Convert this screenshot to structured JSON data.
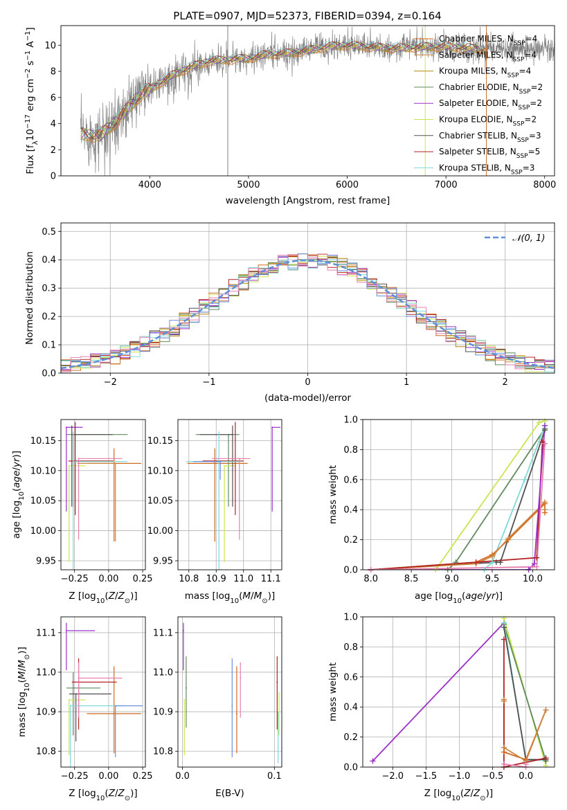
{
  "figure_title": "PLATE=0907, MJD=52373, FIBERID=0394, z=0.164",
  "series": [
    {
      "name": "Chabrier MILES, N$_{SSP}$=4",
      "label_base": "Chabrier MILES, N",
      "label_sub": "SSP",
      "label_tail": "=4",
      "color": "#d2691e"
    },
    {
      "name": "Salpeter MILES, N$_{SSP}$=4",
      "label_base": "Salpeter MILES, N",
      "label_sub": "SSP",
      "label_tail": "=4",
      "color": "#cd853f"
    },
    {
      "name": "Kroupa MILES, N$_{SSP}$=4",
      "label_base": "Kroupa MILES, N",
      "label_sub": "SSP",
      "label_tail": "=4",
      "color": "#b8860b"
    },
    {
      "name": "Chabrier ELODIE, N$_{SSP}$=2",
      "label_base": "Chabrier ELODIE, N",
      "label_sub": "SSP",
      "label_tail": "=2",
      "color": "#5f8a5f"
    },
    {
      "name": "Salpeter ELODIE, N$_{SSP}$=2",
      "label_base": "Salpeter ELODIE, N",
      "label_sub": "SSP",
      "label_tail": "=2",
      "color": "#9b30c8"
    },
    {
      "name": "Kroupa ELODIE, N$_{SSP}$=2",
      "label_base": "Kroupa ELODIE, N",
      "label_sub": "SSP",
      "label_tail": "=2",
      "color": "#c8e650"
    },
    {
      "name": "Chabrier STELIB, N$_{SSP}$=3",
      "label_base": "Chabrier STELIB, N",
      "label_sub": "SSP",
      "label_tail": "=3",
      "color": "#505050"
    },
    {
      "name": "Salpeter STELIB, N$_{SSP}$=5",
      "label_base": "Salpeter STELIB, N",
      "label_sub": "SSP",
      "label_tail": "=5",
      "color": "#b22222"
    },
    {
      "name": "Kroupa STELIB, N$_{SSP}$=3",
      "label_base": "Kroupa STELIB, N",
      "label_sub": "SSP",
      "label_tail": "=3",
      "color": "#7fd8d8"
    }
  ],
  "extra_colors": {
    "data_spectrum": "#808080",
    "gaussian": "#5b8fd8",
    "pink": "#e67fb0",
    "blue": "#6a8ee0"
  },
  "chart_data": [
    {
      "id": "spectrum",
      "type": "line",
      "xlabel": "wavelength [Angstrom, rest frame]",
      "ylabel": "Flux [f$_\\lambda$10$^{-17}$ erg cm$^{-2}$ s$^{-1}$ A$^{-1}$]",
      "ylabel_parts": [
        "Flux [f",
        "λ",
        "10",
        "−17",
        " erg cm",
        "−2",
        " s",
        "−1",
        " A",
        "−1",
        "]"
      ],
      "xlim": [
        3100,
        8100
      ],
      "ylim": [
        0,
        11.5
      ],
      "xticks": [
        4000,
        5000,
        6000,
        7000,
        8000
      ],
      "yticks": [
        0,
        2,
        4,
        6,
        8,
        10
      ],
      "grid": false,
      "legend": "top-right",
      "model_continuum": {
        "x": [
          3300,
          3500,
          3700,
          3900,
          4000,
          4200,
          4400,
          4600,
          4800,
          5000,
          5200,
          5400,
          5600,
          5800,
          6000,
          6200,
          6400,
          6600,
          6800,
          7000,
          7200,
          7400
        ],
        "y": [
          3.2,
          3.1,
          4.5,
          6.2,
          6.6,
          7.6,
          8.3,
          8.8,
          8.9,
          9.0,
          9.3,
          9.4,
          9.6,
          9.9,
          10.0,
          9.9,
          9.8,
          9.8,
          9.9,
          9.9,
          9.8,
          9.7
        ]
      },
      "data_range_angstrom": [
        3300,
        8100
      ]
    },
    {
      "id": "residuals",
      "type": "bar",
      "xlabel": "(data-model)/error",
      "ylabel": "Normed distribution",
      "xlim": [
        -2.5,
        2.5
      ],
      "ylim": [
        0,
        0.53
      ],
      "xticks": [
        -2,
        -1,
        0,
        1,
        2
      ],
      "yticks": [
        0.0,
        0.1,
        0.2,
        0.3,
        0.4,
        0.5
      ],
      "grid": true,
      "legend": "top-right",
      "gaussian_label": "𝒩(0, 1)",
      "bin_width": 0.1
    },
    {
      "id": "age_vs_Z",
      "type": "scatter",
      "xlabel": "Z [log$_{10}$(Z/Z$_\\odot$)]",
      "ylabel": "age  [log$_{10}$(age/yr)]",
      "xlim": [
        -0.35,
        0.27
      ],
      "ylim": [
        9.935,
        10.185
      ],
      "xticks": [
        -0.25,
        0.0,
        0.25
      ],
      "yticks": [
        9.95,
        10.0,
        10.05,
        10.1,
        10.15
      ],
      "grid": true,
      "points": [
        {
          "series": 0,
          "x": 0.04,
          "y": 10.112,
          "xerr": [
            0.2,
            0.2
          ],
          "yerr": [
            0.13,
            0.025
          ]
        },
        {
          "series": 1,
          "x": 0.05,
          "y": 10.112,
          "xerr": [
            0.28,
            0.0
          ],
          "yerr": [
            0.13,
            0.0
          ]
        },
        {
          "series": 3,
          "x": -0.26,
          "y": 10.16,
          "xerr": [
            0.05,
            0.4
          ],
          "yerr": [
            0.12,
            0.0
          ]
        },
        {
          "series": 4,
          "x": -0.31,
          "y": 10.172,
          "xerr": [
            0.0,
            0.12
          ],
          "yerr": [
            0.14,
            0.0
          ]
        },
        {
          "series": 5,
          "x": -0.29,
          "y": 10.108,
          "xerr": [
            0.0,
            0.12
          ],
          "yerr": [
            0.16,
            0.0
          ]
        },
        {
          "series": 6,
          "x": -0.27,
          "y": 10.16,
          "xerr": [
            0.0,
            0.3
          ],
          "yerr": [
            0.12,
            0.015
          ]
        },
        {
          "series": 7,
          "x": -0.245,
          "y": 10.116,
          "xerr": [
            0.05,
            0.28
          ],
          "yerr": [
            0.09,
            0.065
          ]
        },
        {
          "series": 8,
          "x": -0.26,
          "y": 10.115,
          "xerr": [
            0.0,
            0.4
          ],
          "yerr": [
            0.19,
            0.05
          ]
        },
        {
          "series": -1,
          "color_key": "pink",
          "x": -0.22,
          "y": 10.12,
          "xerr": [
            0.0,
            0.32
          ],
          "yerr": [
            0.135,
            0.0
          ]
        }
      ]
    },
    {
      "id": "age_vs_mass",
      "type": "scatter",
      "xlabel": "mass [log$_{10}$(M/M$_\\odot$)]",
      "ylabel": "",
      "xlim": [
        10.76,
        11.14
      ],
      "ylim": [
        9.935,
        10.185
      ],
      "xticks": [
        10.8,
        10.9,
        11.0,
        11.1
      ],
      "yticks": [
        9.95,
        10.0,
        10.05,
        10.1,
        10.15
      ],
      "grid": true,
      "points": [
        {
          "series": 0,
          "x": 10.895,
          "y": 10.112,
          "xerr": [
            0.1,
            0.12
          ],
          "yerr": [
            0.13,
            0.025
          ]
        },
        {
          "series": 3,
          "x": 10.945,
          "y": 10.16,
          "xerr": [
            0.12,
            0.04
          ],
          "yerr": [
            0.12,
            0.0
          ]
        },
        {
          "series": 4,
          "x": 11.105,
          "y": 10.172,
          "xerr": [
            0.0,
            0.03
          ],
          "yerr": [
            0.14,
            0.0
          ]
        },
        {
          "series": 5,
          "x": 10.93,
          "y": 10.108,
          "xerr": [
            0.0,
            0.04
          ],
          "yerr": [
            0.16,
            0.0
          ]
        },
        {
          "series": 6,
          "x": 10.96,
          "y": 10.16,
          "xerr": [
            0.12,
            0.0
          ],
          "yerr": [
            0.12,
            0.015
          ]
        },
        {
          "series": 7,
          "x": 10.97,
          "y": 10.116,
          "xerr": [
            0.12,
            0.03
          ],
          "yerr": [
            0.09,
            0.065
          ]
        },
        {
          "series": 8,
          "x": 10.91,
          "y": 10.115,
          "xerr": [
            0.12,
            0.08
          ],
          "yerr": [
            0.19,
            0.05
          ]
        },
        {
          "series": -1,
          "color_key": "pink",
          "x": 10.985,
          "y": 10.12,
          "xerr": [
            0.1,
            0.04
          ],
          "yerr": [
            0.135,
            0.0
          ]
        },
        {
          "series": -1,
          "color_key": "blue",
          "x": 10.915,
          "y": 10.115,
          "xerr": [
            0.1,
            0.0
          ],
          "yerr": [
            0.03,
            0.0
          ]
        }
      ]
    },
    {
      "id": "weight_vs_age",
      "type": "line",
      "xlabel": "age  [log$_{10}$(age/yr)]",
      "ylabel": "mass weight",
      "xlim": [
        7.9,
        10.27
      ],
      "ylim": [
        0,
        1.0
      ],
      "xticks": [
        8.0,
        8.5,
        9.0,
        9.5,
        10.0
      ],
      "yticks": [
        0.0,
        0.2,
        0.4,
        0.6,
        0.8,
        1.0
      ],
      "grid": true,
      "lines": [
        {
          "series": 5,
          "x": [
            8.0,
            8.8,
            10.08,
            10.15
          ],
          "y": [
            0.0,
            0.0,
            0.98,
            0.99
          ]
        },
        {
          "series": 3,
          "x": [
            8.0,
            8.95,
            9.05,
            10.15
          ],
          "y": [
            0.0,
            0.0,
            0.05,
            0.94
          ]
        },
        {
          "series": 6,
          "x": [
            8.0,
            9.55,
            9.6,
            10.15
          ],
          "y": [
            0.0,
            0.05,
            0.05,
            0.93
          ]
        },
        {
          "series": 8,
          "x": [
            8.0,
            9.4,
            9.5,
            9.9,
            10.15
          ],
          "y": [
            0.0,
            0.0,
            0.05,
            0.6,
            0.96
          ]
        },
        {
          "series": 0,
          "x": [
            8.0,
            9.3,
            9.5,
            9.7,
            10.15,
            10.15
          ],
          "y": [
            0.0,
            0.05,
            0.1,
            0.2,
            0.44,
            0.38
          ]
        },
        {
          "series": 1,
          "x": [
            8.0,
            9.3,
            9.5,
            9.7,
            10.15,
            10.15
          ],
          "y": [
            0.0,
            0.04,
            0.09,
            0.21,
            0.45,
            0.4
          ]
        },
        {
          "series": 7,
          "x": [
            8.0,
            9.3,
            10.05,
            10.12,
            10.15
          ],
          "y": [
            0.0,
            0.05,
            0.08,
            0.85,
            0.84
          ]
        },
        {
          "series": 4,
          "x": [
            8.0,
            9.95,
            10.02,
            10.15
          ],
          "y": [
            0.0,
            0.0,
            0.04,
            0.96
          ]
        },
        {
          "series": -1,
          "color_key": "pink",
          "x": [
            8.0,
            10.05,
            10.15
          ],
          "y": [
            0.0,
            0.02,
            0.84
          ]
        }
      ]
    },
    {
      "id": "mass_vs_Z",
      "type": "scatter",
      "xlabel": "Z [log$_{10}$(Z/Z$_\\odot$)]",
      "ylabel": "mass [log$_{10}$(M/M$_\\odot$)]",
      "xlim": [
        -0.35,
        0.27
      ],
      "ylim": [
        10.76,
        11.14
      ],
      "xticks": [
        -0.25,
        0.0,
        0.25
      ],
      "yticks": [
        10.8,
        10.9,
        11.0,
        11.1
      ],
      "grid": true,
      "points": [
        {
          "series": 0,
          "x": 0.04,
          "y": 10.895,
          "xerr": [
            0.2,
            0.2
          ],
          "yerr": [
            0.1,
            0.12
          ]
        },
        {
          "series": 3,
          "x": -0.26,
          "y": 10.96,
          "xerr": [
            0.05,
            0.2
          ],
          "yerr": [
            0.12,
            0.04
          ]
        },
        {
          "series": 4,
          "x": -0.31,
          "y": 11.105,
          "xerr": [
            0.0,
            0.21
          ],
          "yerr": [
            0.1,
            0.02
          ]
        },
        {
          "series": 5,
          "x": -0.29,
          "y": 10.93,
          "xerr": [
            0.0,
            0.12
          ],
          "yerr": [
            0.14,
            0.0
          ]
        },
        {
          "series": 6,
          "x": -0.24,
          "y": 10.945,
          "xerr": [
            0.05,
            0.26
          ],
          "yerr": [
            0.12,
            0.0
          ]
        },
        {
          "series": 7,
          "x": -0.22,
          "y": 10.975,
          "xerr": [
            0.05,
            0.28
          ],
          "yerr": [
            0.12,
            0.06
          ]
        },
        {
          "series": 8,
          "x": -0.28,
          "y": 10.915,
          "xerr": [
            0.0,
            0.4
          ],
          "yerr": [
            0.19,
            0.0
          ]
        },
        {
          "series": -1,
          "color_key": "pink",
          "x": -0.22,
          "y": 10.985,
          "xerr": [
            0.0,
            0.32
          ],
          "yerr": [
            0.1,
            0.04
          ]
        },
        {
          "series": -1,
          "color_key": "blue",
          "x": 0.05,
          "y": 10.915,
          "xerr": [
            0.0,
            0.2
          ],
          "yerr": [
            0.13,
            0.0
          ]
        }
      ]
    },
    {
      "id": "mass_vs_ebv",
      "type": "scatter",
      "xlabel": "E(B-V)",
      "ylabel": "",
      "xlim": [
        -0.005,
        0.108
      ],
      "ylim": [
        10.76,
        11.14
      ],
      "xticks": [
        0.0,
        0.1
      ],
      "yticks": [
        10.8,
        10.9,
        11.0,
        11.1
      ],
      "grid": true,
      "points": [
        {
          "series": 4,
          "x": 0.001,
          "y": 11.105,
          "yerr": [
            0.1,
            0.02
          ]
        },
        {
          "series": 5,
          "x": 0.002,
          "y": 10.93,
          "yerr": [
            0.14,
            0.0
          ]
        },
        {
          "series": 3,
          "x": 0.004,
          "y": 10.96,
          "yerr": [
            0.1,
            0.08
          ]
        },
        {
          "series": -1,
          "color_key": "blue",
          "x": 0.054,
          "y": 10.915,
          "yerr": [
            0.13,
            0.12
          ]
        },
        {
          "series": 0,
          "x": 0.059,
          "y": 10.895,
          "yerr": [
            0.1,
            0.12
          ]
        },
        {
          "series": -1,
          "color_key": "pink",
          "x": 0.063,
          "y": 10.985,
          "yerr": [
            0.1,
            0.04
          ]
        },
        {
          "series": 7,
          "x": 0.103,
          "y": 10.975,
          "yerr": [
            0.12,
            0.065
          ]
        },
        {
          "series": 8,
          "x": 0.104,
          "y": 10.85,
          "yerr": [
            0.08,
            0.05
          ]
        },
        {
          "series": 5,
          "x": 0.105,
          "y": 10.9,
          "yerr": [
            0.06,
            0.05
          ]
        }
      ]
    },
    {
      "id": "weight_vs_Z",
      "type": "line",
      "xlabel": "Z [log$_{10}$(Z/Z$_\\odot$)]",
      "ylabel": "mass weight",
      "xlim": [
        -2.45,
        0.43
      ],
      "ylim": [
        0,
        1.0
      ],
      "xticks": [
        -2.0,
        -1.5,
        -1.0,
        -0.5,
        0.0
      ],
      "yticks": [
        0.0,
        0.2,
        0.4,
        0.6,
        0.8,
        1.0
      ],
      "grid": true,
      "lines": [
        {
          "series": 4,
          "x": [
            -2.3,
            -0.33
          ],
          "y": [
            0.04,
            0.96
          ]
        },
        {
          "series": 5,
          "x": [
            -0.33,
            0.3
          ],
          "y": [
            0.99,
            0.01
          ]
        },
        {
          "series": 3,
          "x": [
            -0.33,
            0.3
          ],
          "y": [
            0.95,
            0.04
          ]
        },
        {
          "series": 8,
          "x": [
            -0.33,
            0.0,
            0.3
          ],
          "y": [
            0.96,
            0.04,
            0.05
          ]
        },
        {
          "series": 6,
          "x": [
            -0.33,
            0.0,
            0.3
          ],
          "y": [
            0.93,
            0.05,
            0.05
          ]
        },
        {
          "series": 0,
          "x": [
            -0.33,
            -0.33,
            0.0,
            0.3
          ],
          "y": [
            0.44,
            0.1,
            0.05,
            0.38
          ]
        },
        {
          "series": 1,
          "x": [
            -0.33,
            -0.33,
            0.0,
            0.3
          ],
          "y": [
            0.45,
            0.13,
            0.04,
            0.38
          ]
        },
        {
          "series": 7,
          "x": [
            -0.33,
            -0.33,
            0.3
          ],
          "y": [
            0.85,
            0.0,
            0.06
          ]
        },
        {
          "series": -1,
          "color_key": "pink",
          "x": [
            -0.33,
            0.0,
            0.0
          ],
          "y": [
            0.02,
            0.0,
            0.02
          ]
        }
      ]
    }
  ]
}
